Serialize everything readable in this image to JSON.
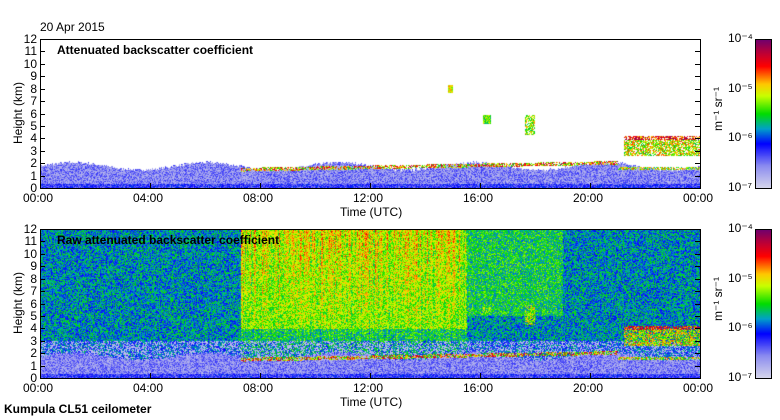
{
  "date": "20 Apr 2015",
  "footer": "Kumpula CL51 ceilometer",
  "chart_data": [
    {
      "type": "heatmap",
      "title": "Attenuated backscatter coefficient",
      "xlabel": "Time (UTC)",
      "ylabel": "Height (km)",
      "xticks": [
        "00:00",
        "04:00",
        "08:00",
        "12:00",
        "16:00",
        "20:00",
        "00:00"
      ],
      "yticks": [
        "0",
        "1",
        "2",
        "3",
        "4",
        "5",
        "6",
        "7",
        "8",
        "9",
        "10",
        "11",
        "12"
      ],
      "xlim": [
        0,
        24
      ],
      "ylim": [
        0,
        12
      ],
      "colorbar": {
        "label": "m⁻¹ sr⁻¹",
        "ticks": [
          "10⁻⁷",
          "10⁻⁶",
          "10⁻⁵",
          "10⁻⁴"
        ],
        "range": [
          -7,
          -4
        ],
        "scale": "log"
      }
    },
    {
      "type": "heatmap",
      "title": "Raw attenuated backscatter coefficient",
      "xlabel": "Time (UTC)",
      "ylabel": "Height (km)",
      "xticks": [
        "00:00",
        "04:00",
        "08:00",
        "12:00",
        "16:00",
        "20:00",
        "00:00"
      ],
      "yticks": [
        "0",
        "1",
        "2",
        "3",
        "4",
        "5",
        "6",
        "7",
        "8",
        "9",
        "10",
        "11",
        "12"
      ],
      "xlim": [
        0,
        24
      ],
      "ylim": [
        0,
        12
      ],
      "colorbar": {
        "label": "m⁻¹ sr⁻¹",
        "ticks": [
          "10⁻⁷",
          "10⁻⁶",
          "10⁻⁵",
          "10⁻⁴"
        ],
        "range": [
          -7,
          -4
        ],
        "scale": "log"
      }
    }
  ]
}
